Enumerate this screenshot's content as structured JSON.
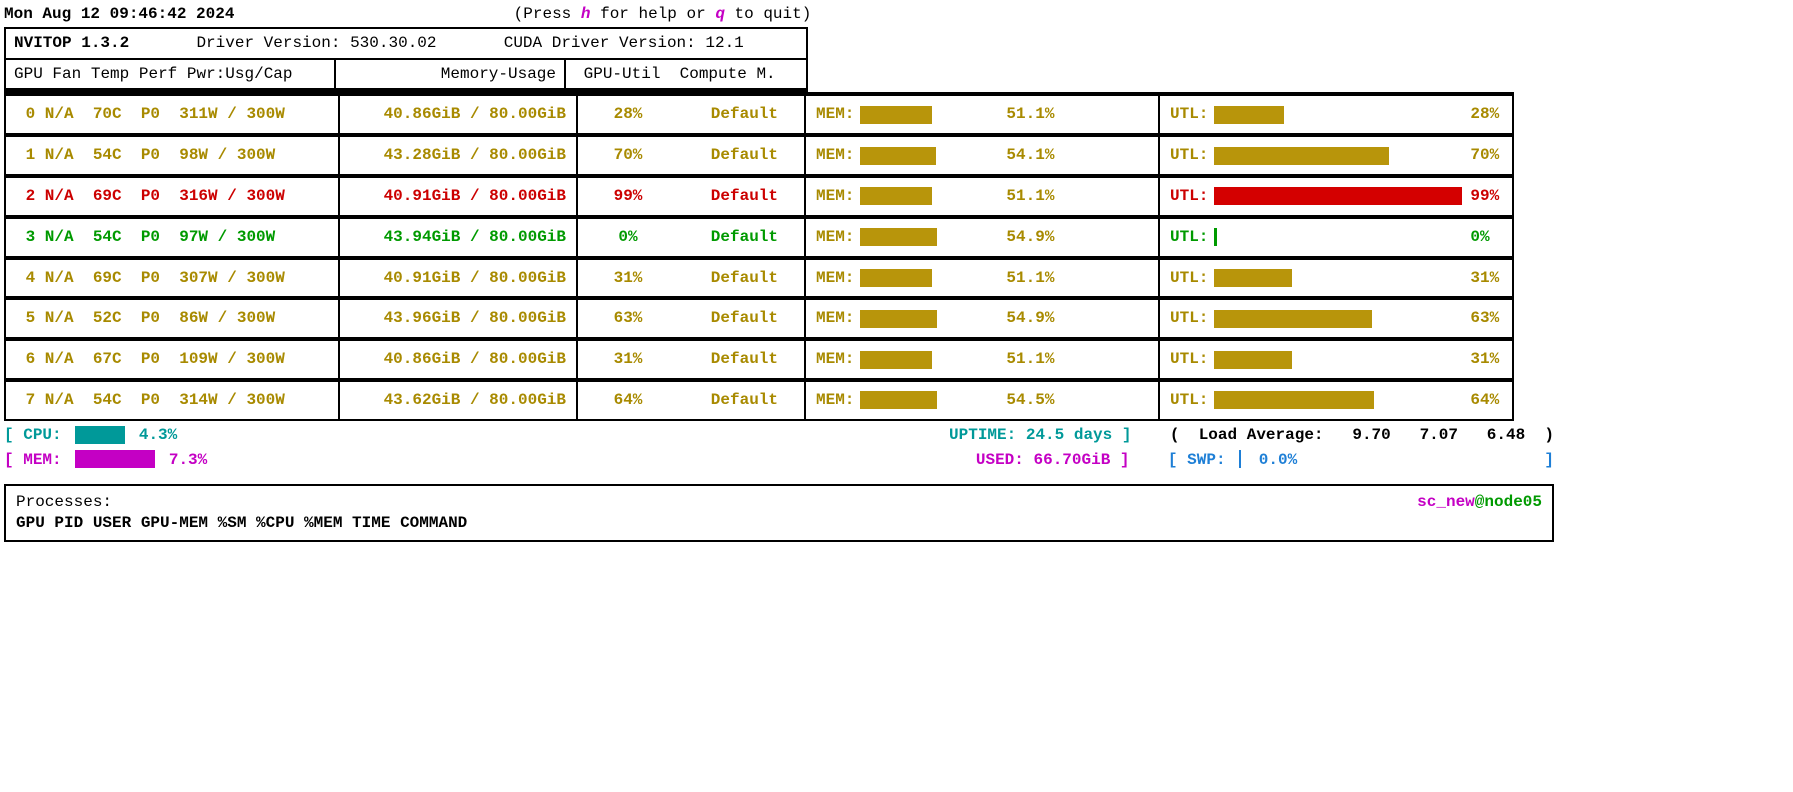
{
  "timestamp": "Mon Aug 12 09:46:42 2024",
  "help_hint": {
    "prefix": "(Press ",
    "h": "h",
    "mid": " for help or ",
    "q": "q",
    "suffix": " to quit)"
  },
  "app": {
    "name": "NVITOP 1.3.2",
    "driver_label": "Driver Version:",
    "driver_ver": "530.30.02",
    "cuda_label": "CUDA Driver Version:",
    "cuda_ver": "12.1"
  },
  "cols": {
    "gpu": "GPU",
    "fan": "Fan",
    "temp": "Temp",
    "perf": "Perf",
    "pwr": "Pwr:Usg/Cap",
    "mem": "Memory-Usage",
    "util": "GPU-Util",
    "cm": "Compute M."
  },
  "bar_labels": {
    "mem": "MEM:",
    "utl": "UTL:"
  },
  "colors": {
    "olive": "#a88a00",
    "olive_fill": "#b8950b",
    "red": "#cc0000",
    "red_fill": "#d40000",
    "green": "#009a00",
    "magenta": "#c400c4",
    "teal": "#009999",
    "blue": "#1e7fd6",
    "black": "#000000"
  },
  "gpus": [
    {
      "idx": "0",
      "fan": "N/A",
      "temp": "70C",
      "perf": "P0",
      "pwr": "311W / 300W",
      "mem": "40.86GiB / 80.00GiB",
      "util": "28%",
      "cm": "Default",
      "mem_pct": 51.1,
      "mem_txt": "51.1%",
      "utl_pct": 28,
      "utl_txt": "28%",
      "style": "olive"
    },
    {
      "idx": "1",
      "fan": "N/A",
      "temp": "54C",
      "perf": "P0",
      "pwr": " 98W / 300W",
      "mem": "43.28GiB / 80.00GiB",
      "util": "70%",
      "cm": "Default",
      "mem_pct": 54.1,
      "mem_txt": "54.1%",
      "utl_pct": 70,
      "utl_txt": "70%",
      "style": "olive"
    },
    {
      "idx": "2",
      "fan": "N/A",
      "temp": "69C",
      "perf": "P0",
      "pwr": "316W / 300W",
      "mem": "40.91GiB / 80.00GiB",
      "util": "99%",
      "cm": "Default",
      "mem_pct": 51.1,
      "mem_txt": "51.1%",
      "utl_pct": 99,
      "utl_txt": "99%",
      "style": "red"
    },
    {
      "idx": "3",
      "fan": "N/A",
      "temp": "54C",
      "perf": "P0",
      "pwr": " 97W / 300W",
      "mem": "43.94GiB / 80.00GiB",
      "util": "0%",
      "cm": "Default",
      "mem_pct": 54.9,
      "mem_txt": "54.9%",
      "utl_pct": 0,
      "utl_txt": "0%",
      "style": "green"
    },
    {
      "idx": "4",
      "fan": "N/A",
      "temp": "69C",
      "perf": "P0",
      "pwr": "307W / 300W",
      "mem": "40.91GiB / 80.00GiB",
      "util": "31%",
      "cm": "Default",
      "mem_pct": 51.1,
      "mem_txt": "51.1%",
      "utl_pct": 31,
      "utl_txt": "31%",
      "style": "olive"
    },
    {
      "idx": "5",
      "fan": "N/A",
      "temp": "52C",
      "perf": "P0",
      "pwr": " 86W / 300W",
      "mem": "43.96GiB / 80.00GiB",
      "util": "63%",
      "cm": "Default",
      "mem_pct": 54.9,
      "mem_txt": "54.9%",
      "utl_pct": 63,
      "utl_txt": "63%",
      "style": "olive"
    },
    {
      "idx": "6",
      "fan": "N/A",
      "temp": "67C",
      "perf": "P0",
      "pwr": "109W / 300W",
      "mem": "40.86GiB / 80.00GiB",
      "util": "31%",
      "cm": "Default",
      "mem_pct": 51.1,
      "mem_txt": "51.1%",
      "utl_pct": 31,
      "utl_txt": "31%",
      "style": "olive"
    },
    {
      "idx": "7",
      "fan": "N/A",
      "temp": "54C",
      "perf": "P0",
      "pwr": "314W / 300W",
      "mem": "43.62GiB / 80.00GiB",
      "util": "64%",
      "cm": "Default",
      "mem_pct": 54.5,
      "mem_txt": "54.5%",
      "utl_pct": 64,
      "utl_txt": "64%",
      "style": "olive"
    }
  ],
  "sys": {
    "cpu_label": "CPU:",
    "cpu_pct": 4.3,
    "cpu_txt": "4.3%",
    "cpu_color": "#009999",
    "mem_label": "MEM:",
    "mem_pct": 7.3,
    "mem_txt": "7.3%",
    "mem_color": "#c400c4",
    "uptime_label": "UPTIME:",
    "uptime_val": "24.5 days",
    "used_label": "USED:",
    "used_val": "66.70GiB",
    "load_label": "Load Average:",
    "load1": "9.70",
    "load5": "7.07",
    "load15": "6.48",
    "swp_label": "SWP:",
    "swp_txt": "0.0%",
    "bracket_open": "[",
    "bracket_close": "]",
    "paren_open": "(",
    "paren_close": ")"
  },
  "proc": {
    "title": "Processes:",
    "cols": "GPU     PID      USER  GPU-MEM %SM  %CPU  %MEM     TIME  COMMAND",
    "user": "sc_new",
    "at": "@",
    "host": "node05"
  }
}
